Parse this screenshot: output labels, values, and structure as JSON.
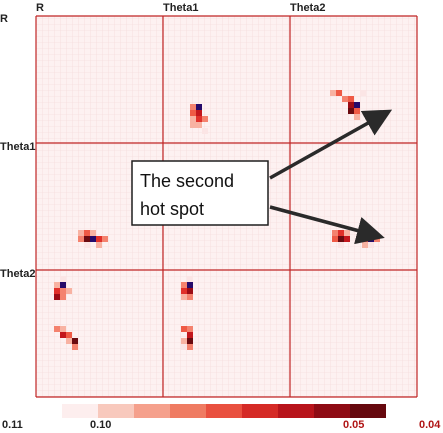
{
  "chart_data": {
    "type": "heatmap",
    "grid": {
      "rows": [
        "R",
        "Theta1",
        "Theta2"
      ],
      "cols": [
        "R",
        "Theta1",
        "Theta2"
      ]
    },
    "row_labels": [
      "R",
      "Theta1",
      "Theta2"
    ],
    "col_labels": [
      "R",
      "Theta1",
      "Theta2"
    ],
    "cell_colors": [
      "#fbe5e5",
      "#f8b2a2",
      "#f4826e",
      "#ef5a45",
      "#e0302a",
      "#c3161c",
      "#9c0c15",
      "#6a0a0f",
      "#250a6a"
    ],
    "hot_cells": [
      {
        "row": 0,
        "col": 1,
        "cells": [
          [
            3,
            7,
            2
          ],
          [
            3,
            8,
            8
          ],
          [
            4,
            8,
            5
          ],
          [
            4,
            7,
            3
          ],
          [
            5,
            7,
            1
          ],
          [
            5,
            8,
            4
          ],
          [
            5,
            9,
            2
          ],
          [
            6,
            7,
            1
          ],
          [
            6,
            8,
            1
          ],
          [
            7,
            9,
            0
          ]
        ]
      },
      {
        "row": 0,
        "col": 2,
        "cells": [
          [
            10,
            8,
            2
          ],
          [
            10,
            9,
            3
          ],
          [
            11,
            9,
            6
          ],
          [
            11,
            10,
            8
          ],
          [
            12,
            9,
            7
          ],
          [
            12,
            10,
            3
          ],
          [
            13,
            10,
            1
          ],
          [
            9,
            7,
            3
          ],
          [
            9,
            6,
            1
          ],
          [
            9,
            11,
            0
          ]
        ]
      },
      {
        "row": 1,
        "col": 0,
        "cells": [
          [
            3,
            7,
            1
          ],
          [
            3,
            8,
            3
          ],
          [
            4,
            7,
            2
          ],
          [
            4,
            8,
            7
          ],
          [
            4,
            9,
            8
          ],
          [
            4,
            10,
            4
          ],
          [
            4,
            11,
            2
          ],
          [
            3,
            9,
            1
          ],
          [
            5,
            8,
            0
          ],
          [
            5,
            10,
            1
          ]
        ]
      },
      {
        "row": 1,
        "col": 2,
        "cells": [
          [
            3,
            7,
            2
          ],
          [
            3,
            8,
            4
          ],
          [
            4,
            7,
            3
          ],
          [
            4,
            8,
            7
          ],
          [
            4,
            9,
            5
          ],
          [
            3,
            9,
            1
          ],
          [
            4,
            11,
            1
          ],
          [
            5,
            8,
            0
          ]
        ]
      },
      {
        "row": 1,
        "col": 2,
        "cells": [
          [
            3,
            12,
            2
          ],
          [
            3,
            13,
            4
          ],
          [
            4,
            12,
            3
          ],
          [
            4,
            13,
            8
          ],
          [
            4,
            14,
            2
          ],
          [
            5,
            12,
            1
          ],
          [
            5,
            13,
            0
          ]
        ]
      },
      {
        "row": 2,
        "col": 0,
        "cells": [
          [
            1,
            3,
            1
          ],
          [
            1,
            4,
            8
          ],
          [
            2,
            3,
            4
          ],
          [
            2,
            4,
            2
          ],
          [
            3,
            3,
            6
          ],
          [
            3,
            4,
            2
          ],
          [
            2,
            5,
            1
          ],
          [
            0,
            4,
            0
          ]
        ]
      },
      {
        "row": 2,
        "col": 0,
        "cells": [
          [
            7,
            3,
            2
          ],
          [
            7,
            4,
            1
          ],
          [
            8,
            4,
            5
          ],
          [
            8,
            5,
            3
          ],
          [
            9,
            5,
            1
          ],
          [
            9,
            6,
            7
          ],
          [
            10,
            6,
            2
          ]
        ]
      },
      {
        "row": 2,
        "col": 1,
        "cells": [
          [
            1,
            3,
            2
          ],
          [
            1,
            4,
            8
          ],
          [
            2,
            3,
            4
          ],
          [
            2,
            4,
            6
          ],
          [
            3,
            4,
            2
          ],
          [
            3,
            3,
            1
          ],
          [
            0,
            4,
            0
          ]
        ]
      },
      {
        "row": 2,
        "col": 1,
        "cells": [
          [
            7,
            3,
            3
          ],
          [
            7,
            4,
            2
          ],
          [
            8,
            4,
            5
          ],
          [
            9,
            3,
            1
          ],
          [
            9,
            4,
            7
          ],
          [
            10,
            4,
            2
          ],
          [
            10,
            3,
            0
          ]
        ]
      }
    ],
    "colorbar": {
      "colors": [
        "#fdeeee",
        "#f8c9bd",
        "#f5a08c",
        "#ef7b62",
        "#e9503f",
        "#d52a26",
        "#b8141b",
        "#8e0b14",
        "#66080e"
      ],
      "tick_labels": [
        "0.11",
        "0.10",
        "0.05",
        "0.04"
      ]
    },
    "annotation": {
      "text_line1": "The second",
      "text_line2": "hot spot"
    }
  }
}
